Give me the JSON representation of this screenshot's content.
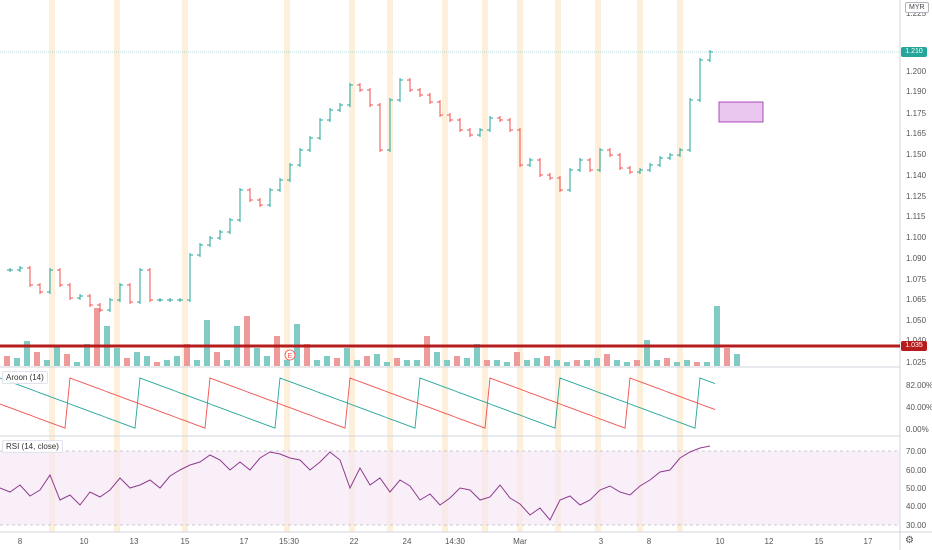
{
  "currency": "MYR",
  "indicators": {
    "aroon_label": "Aroon (14)",
    "rsi_label": "RSI (14, close)"
  },
  "price_axis": {
    "ticks": [
      "1.225",
      "1.210",
      "1.200",
      "1.190",
      "1.175",
      "1.165",
      "1.150",
      "1.140",
      "1.125",
      "1.115",
      "1.100",
      "1.090",
      "1.075",
      "1.065",
      "1.050",
      "1.040",
      "1.035",
      "1.025"
    ],
    "current_price": "1.210",
    "line_price": "1.035"
  },
  "aroon_axis": {
    "ticks": [
      "82.00%",
      "40.00%",
      "0.00%"
    ]
  },
  "rsi_axis": {
    "ticks": [
      "70.00",
      "60.00",
      "50.00",
      "40.00",
      "30.00"
    ]
  },
  "time_axis": {
    "ticks": [
      "8",
      "10",
      "13",
      "15",
      "17",
      "15:30",
      "22",
      "24",
      "14:30",
      "Mar",
      "3",
      "8",
      "10",
      "12",
      "15",
      "17"
    ]
  },
  "event_marker": "E",
  "colors": {
    "up": "#26a69a",
    "down": "#ef5350",
    "support_line": "#b71c1c",
    "rsi": "#8e3b8e",
    "highlight": "#f8d9a8"
  },
  "settings_icon": "gear-icon"
}
